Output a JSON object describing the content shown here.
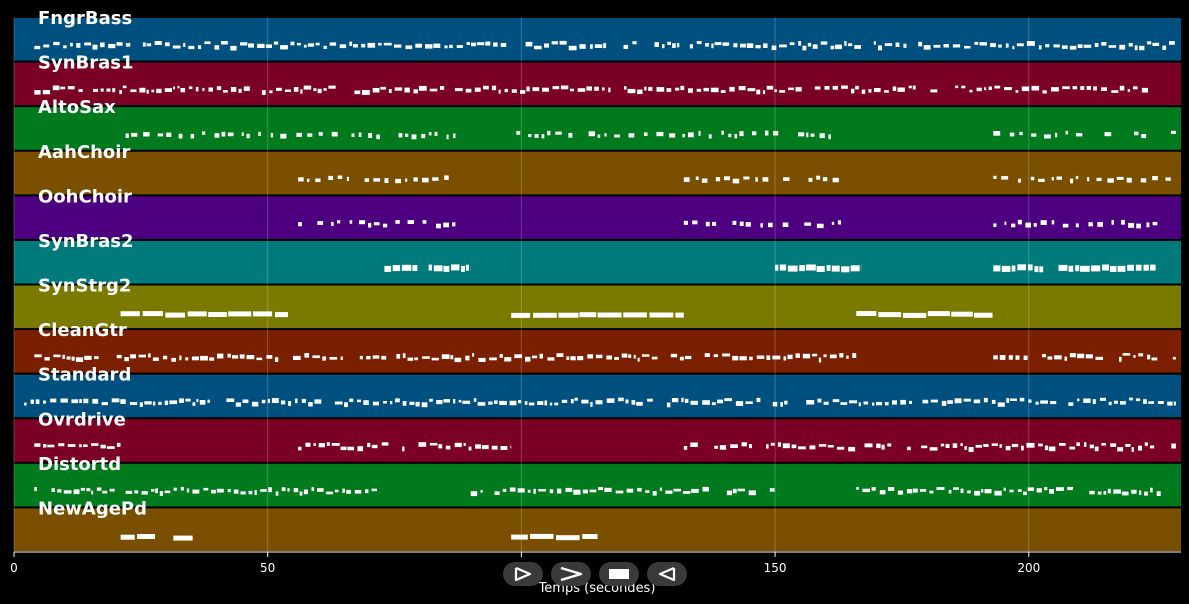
{
  "chart_data": {
    "type": "piano-roll",
    "xlabel": "Temps (secondes)",
    "xlim": [
      0,
      230
    ],
    "xticks": [
      0,
      50,
      100,
      150,
      200
    ],
    "grid": true,
    "tracks": [
      {
        "name": "FngrBass",
        "color": "#00507f",
        "segments": [
          [
            4,
            229
          ]
        ],
        "style": "dense"
      },
      {
        "name": "SynBras1",
        "color": "#7a0026",
        "segments": [
          [
            4,
            226
          ]
        ],
        "style": "dense"
      },
      {
        "name": "AltoSax",
        "color": "#007a1c",
        "segments": [
          [
            22,
            87
          ],
          [
            99,
            161
          ],
          [
            193,
            229
          ]
        ],
        "style": "sparse"
      },
      {
        "name": "AahChoir",
        "color": "#7a5000",
        "segments": [
          [
            56,
            87
          ],
          [
            132,
            163
          ],
          [
            193,
            228
          ]
        ],
        "style": "sparse"
      },
      {
        "name": "OohChoir",
        "color": "#4c007f",
        "segments": [
          [
            56,
            87
          ],
          [
            132,
            163
          ],
          [
            193,
            226
          ]
        ],
        "style": "sparse"
      },
      {
        "name": "SynBras2",
        "color": "#007a7a",
        "segments": [
          [
            73,
            90
          ],
          [
            150,
            167
          ],
          [
            193,
            225
          ]
        ],
        "style": "blocks"
      },
      {
        "name": "SynStrg2",
        "color": "#7a7a00",
        "segments": [
          [
            21,
            54
          ],
          [
            98,
            132
          ],
          [
            166,
            193
          ]
        ],
        "style": "long"
      },
      {
        "name": "CleanGtr",
        "color": "#7a2000",
        "segments": [
          [
            4,
            166
          ],
          [
            193,
            229
          ]
        ],
        "style": "dense"
      },
      {
        "name": "Standard",
        "color": "#00507f",
        "segments": [
          [
            2,
            229
          ]
        ],
        "style": "dense"
      },
      {
        "name": "Ovrdrive",
        "color": "#7a0026",
        "segments": [
          [
            4,
            21
          ],
          [
            56,
            98
          ],
          [
            132,
            229
          ]
        ],
        "style": "dense"
      },
      {
        "name": "Distortd",
        "color": "#007a1c",
        "segments": [
          [
            4,
            20
          ],
          [
            22,
            72
          ],
          [
            90,
            150
          ],
          [
            166,
            226
          ]
        ],
        "style": "dense"
      },
      {
        "name": "NewAgePd",
        "color": "#7a5000",
        "segments": [
          [
            21,
            38
          ],
          [
            98,
            115
          ]
        ],
        "style": "long"
      }
    ]
  },
  "controls": [
    {
      "name": "play-button",
      "icon": "play-icon"
    },
    {
      "name": "fast-forward-button",
      "icon": "fast-forward-icon"
    },
    {
      "name": "stop-button",
      "icon": "stop-icon"
    },
    {
      "name": "rewind-button",
      "icon": "rewind-icon"
    }
  ]
}
